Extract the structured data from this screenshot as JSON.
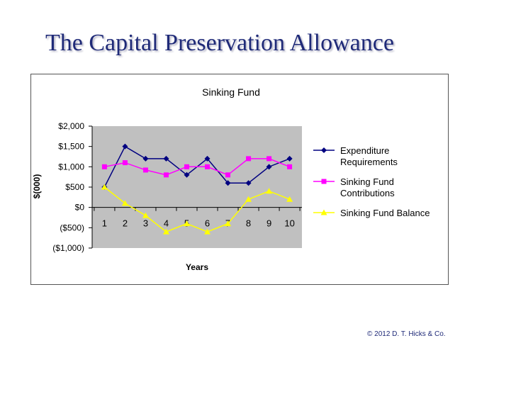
{
  "slide": {
    "title": "The Capital Preservation Allowance",
    "copyright": "© 2012 D. T. Hicks & Co."
  },
  "chart_data": {
    "type": "line",
    "title": "Sinking Fund",
    "xlabel": "Years",
    "ylabel": "$(000)",
    "x": [
      1,
      2,
      3,
      4,
      5,
      6,
      7,
      8,
      9,
      10
    ],
    "ylim": [
      -1000,
      2000
    ],
    "yticks": [
      2000,
      1500,
      1000,
      500,
      0,
      -500,
      -1000
    ],
    "ytick_labels": [
      "$2,000",
      "$1,500",
      "$1,000",
      "$500",
      "$0",
      "($500)",
      "($1,000)"
    ],
    "grid": false,
    "legend_position": "right",
    "series": [
      {
        "name": "Expenditure Requirements",
        "legend_lines": [
          "Expenditure",
          "Requirements"
        ],
        "color": "#000080",
        "marker": "diamond",
        "values": [
          500,
          1500,
          1200,
          1200,
          800,
          1200,
          600,
          600,
          1000,
          1200
        ]
      },
      {
        "name": "Sinking Fund Contributions",
        "legend_lines": [
          "Sinking Fund",
          "Contributions"
        ],
        "color": "#ff00ff",
        "marker": "square",
        "values": [
          1000,
          1100,
          920,
          800,
          1000,
          1000,
          800,
          1200,
          1200,
          1000
        ]
      },
      {
        "name": "Sinking Fund Balance",
        "legend_lines": [
          "Sinking Fund Balance"
        ],
        "color": "#ffff00",
        "marker": "triangle",
        "values": [
          500,
          100,
          -200,
          -600,
          -400,
          -600,
          -400,
          200,
          400,
          200
        ]
      }
    ]
  }
}
